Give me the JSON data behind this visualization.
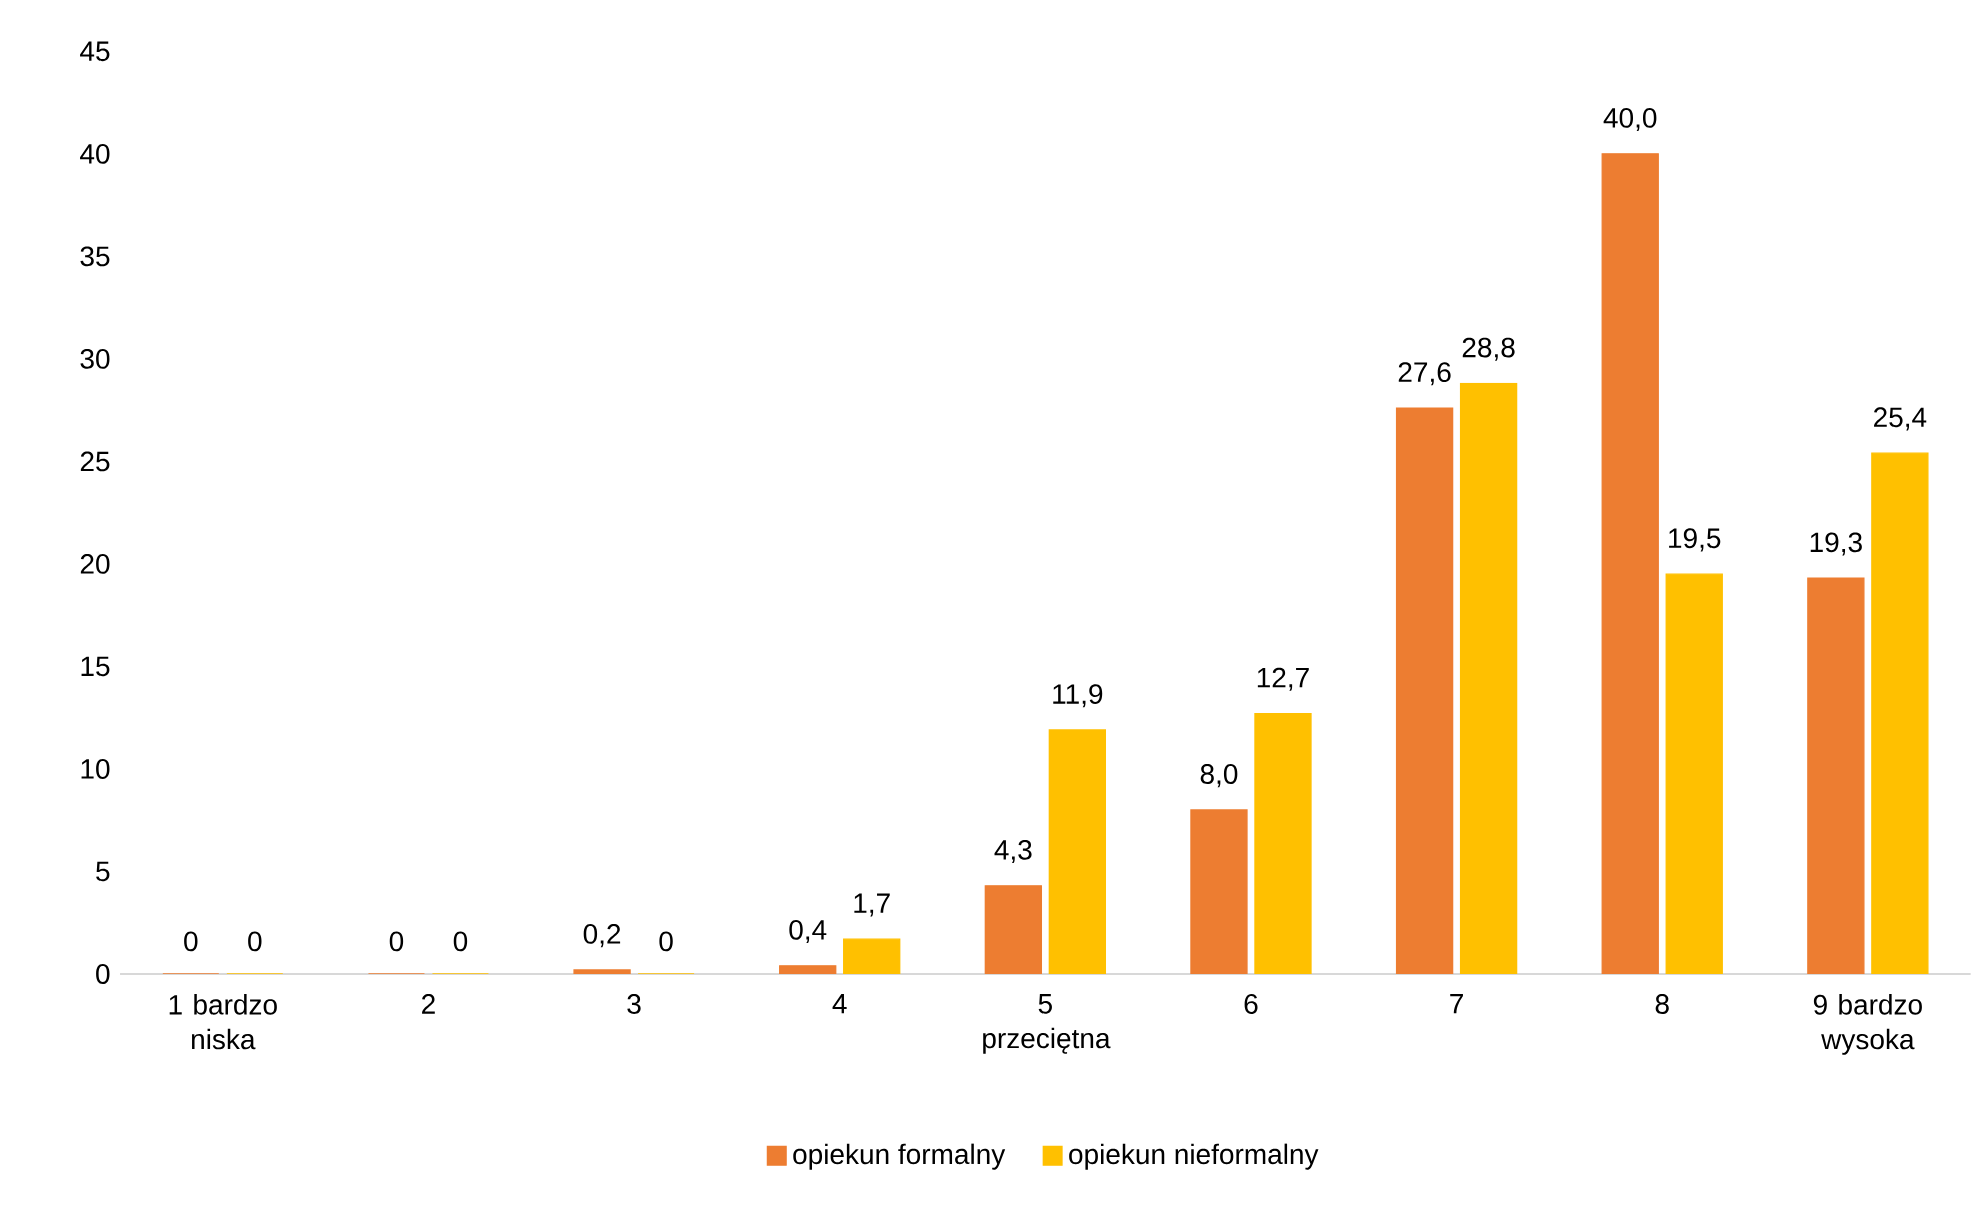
{
  "chart_data": {
    "type": "bar",
    "categories": [
      "1  bardzo niska",
      "2",
      "3",
      "4",
      "5 przeciętna",
      "6",
      "7",
      "8",
      "9  bardzo wysoka"
    ],
    "series": [
      {
        "name": "opiekun formalny",
        "color": "#ed7d31",
        "values": [
          0,
          0,
          0.2,
          0.4,
          4.3,
          8.0,
          27.6,
          40.0,
          19.3
        ],
        "value_labels": [
          "0",
          "0",
          "0,2",
          "0,4",
          "4,3",
          "8,0",
          "27,6",
          "40,0",
          "19,3"
        ]
      },
      {
        "name": "opiekun nieformalny",
        "color": "#ffc000",
        "values": [
          0,
          0,
          0,
          1.7,
          11.9,
          12.7,
          28.8,
          19.5,
          25.4
        ],
        "value_labels": [
          "0",
          "0",
          "0",
          "1,7",
          "11,9",
          "12,7",
          "28,8",
          "19,5",
          "25,4"
        ]
      }
    ],
    "ylim": [
      0,
      45
    ],
    "yticks": [
      0,
      5,
      10,
      15,
      20,
      25,
      30,
      35,
      40,
      45
    ],
    "grid": false,
    "legend": "bottom"
  }
}
